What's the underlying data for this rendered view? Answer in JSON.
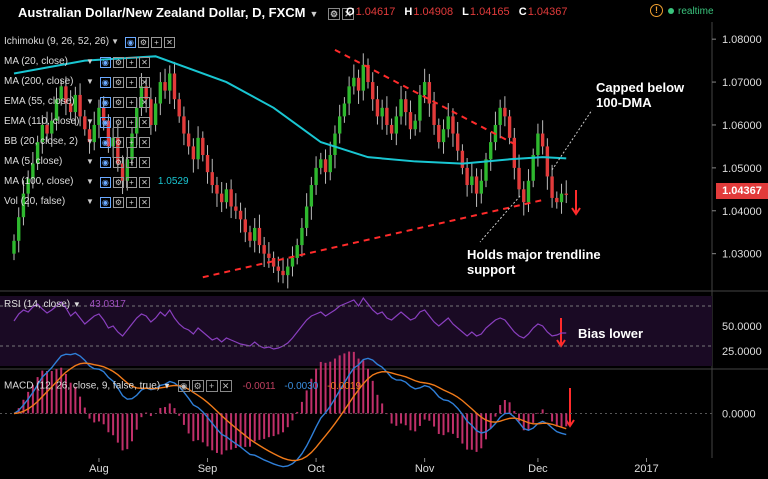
{
  "header": {
    "title": "Australian Dollar/New Zealand Dollar, D, FXCM",
    "ohlc": [
      {
        "k": "O",
        "v": "1.04617"
      },
      {
        "k": "H",
        "v": "1.04908"
      },
      {
        "k": "L",
        "v": "1.04165"
      },
      {
        "k": "C",
        "v": "1.04367"
      }
    ],
    "status": "realtime"
  },
  "indicators": [
    {
      "name": "Ichimoku (9, 26, 52, 26)",
      "value": ""
    },
    {
      "name": "MA (20, close)",
      "value": ""
    },
    {
      "name": "MA (200, close)",
      "value": ""
    },
    {
      "name": "EMA (55, close)",
      "value": ""
    },
    {
      "name": "EMA (110, close)",
      "value": ""
    },
    {
      "name": "BB (20, close, 2)",
      "value": ""
    },
    {
      "name": "MA (5, close)",
      "value": ""
    },
    {
      "name": "MA (100, close)",
      "value": "1.0529"
    },
    {
      "name": "Vol (20, false)",
      "value": ""
    }
  ],
  "rsi": {
    "label": "RSI (14, close)",
    "value": "43.0317",
    "ticks": [
      "50.0000",
      "25.0000"
    ]
  },
  "macd": {
    "label": "MACD (12, 26, close, 9, false, true)",
    "values": [
      "-0.0011",
      "-0.0030",
      "-0.0019"
    ],
    "ticks": [
      "0.0000"
    ]
  },
  "annotations": {
    "capped": [
      "Capped below",
      "100-DMA"
    ],
    "holds": [
      "Holds major trendline",
      "support"
    ],
    "bias": "Bias lower"
  },
  "last_price": "1.04367",
  "colors": {
    "up": "#2eb82e",
    "down": "#e23b3b",
    "ma100": "#19c6d2",
    "rsi": "#8a3fbf",
    "macd": "#2f7fd8",
    "signal": "#f07a1a",
    "trend": "#ff2b2b"
  },
  "chart_data": {
    "type": "candlestick",
    "ylim": [
      1.022,
      1.084
    ],
    "yticks": [
      1.03,
      1.04,
      1.05,
      1.06,
      1.07,
      1.08
    ],
    "xticks": [
      "Aug",
      "Sep",
      "Oct",
      "Nov",
      "Dec",
      "2017"
    ],
    "close": [
      1.033,
      1.0385,
      1.044,
      1.0475,
      1.051,
      1.056,
      1.06,
      1.058,
      1.061,
      1.066,
      1.069,
      1.065,
      1.063,
      1.067,
      1.062,
      1.059,
      1.056,
      1.06,
      1.064,
      1.061,
      1.055,
      1.057,
      1.051,
      1.047,
      1.052,
      1.058,
      1.064,
      1.069,
      1.066,
      1.06,
      1.065,
      1.07,
      1.068,
      1.072,
      1.066,
      1.062,
      1.058,
      1.055,
      1.052,
      1.057,
      1.053,
      1.049,
      1.046,
      1.044,
      1.042,
      1.045,
      1.041,
      1.04,
      1.038,
      1.035,
      1.033,
      1.036,
      1.032,
      1.03,
      1.029,
      1.027,
      1.026,
      1.025,
      1.027,
      1.029,
      1.032,
      1.036,
      1.041,
      1.046,
      1.05,
      1.052,
      1.049,
      1.053,
      1.058,
      1.062,
      1.065,
      1.069,
      1.071,
      1.068,
      1.074,
      1.07,
      1.066,
      1.062,
      1.064,
      1.06,
      1.058,
      1.062,
      1.066,
      1.063,
      1.059,
      1.061,
      1.067,
      1.07,
      1.065,
      1.06,
      1.056,
      1.059,
      1.062,
      1.058,
      1.054,
      1.05,
      1.046,
      1.048,
      1.044,
      1.047,
      1.052,
      1.056,
      1.06,
      1.064,
      1.062,
      1.057,
      1.05,
      1.045,
      1.042,
      1.047,
      1.053,
      1.058,
      1.055,
      1.048,
      1.043,
      1.042,
      1.044,
      1.0437
    ],
    "ma100_points": [
      [
        0,
        1.072
      ],
      [
        15,
        1.075
      ],
      [
        30,
        1.076
      ],
      [
        45,
        1.07
      ],
      [
        55,
        1.064
      ],
      [
        65,
        1.056
      ],
      [
        75,
        1.0525
      ],
      [
        85,
        1.0515
      ],
      [
        95,
        1.051
      ],
      [
        105,
        1.052
      ],
      [
        112,
        1.0525
      ],
      [
        117,
        1.0522
      ]
    ],
    "resistance_line": [
      [
        68,
        1.0775
      ],
      [
        107,
        1.055
      ]
    ],
    "support_line": [
      [
        40,
        1.0245
      ],
      [
        112,
        1.0425
      ]
    ],
    "rsi_series": [
      55,
      62,
      66,
      64,
      69,
      72,
      67,
      63,
      66,
      70,
      74,
      68,
      60,
      64,
      58,
      52,
      56,
      60,
      62,
      56,
      48,
      50,
      44,
      40,
      46,
      52,
      58,
      62,
      60,
      54,
      58,
      64,
      60,
      66,
      58,
      52,
      48,
      46,
      42,
      48,
      44,
      40,
      36,
      38,
      34,
      38,
      36,
      34,
      32,
      31,
      30,
      34,
      30,
      28,
      29,
      27,
      28,
      30,
      33,
      38,
      44,
      50,
      56,
      60,
      62,
      64,
      60,
      63,
      66,
      70,
      72,
      74,
      76,
      70,
      78,
      72,
      66,
      62,
      64,
      58,
      56,
      60,
      64,
      60,
      56,
      58,
      64,
      66,
      60,
      54,
      50,
      54,
      58,
      52,
      48,
      44,
      40,
      44,
      40,
      42,
      48,
      52,
      56,
      58,
      56,
      50,
      44,
      40,
      38,
      42,
      48,
      52,
      50,
      44,
      40,
      41,
      43,
      43
    ]
  }
}
